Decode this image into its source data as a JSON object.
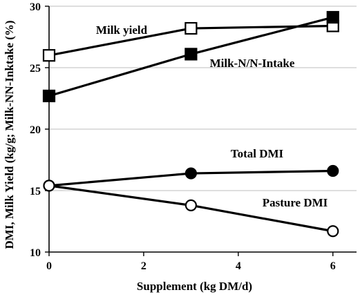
{
  "chart_data": {
    "type": "line",
    "xlabel": "Supplement (kg DM/d)",
    "ylabel": "DMI, Milk Yield (kg/g; Milk-NN-Inktake (%)",
    "xlim": [
      0,
      6.5
    ],
    "ylim": [
      10,
      30
    ],
    "x_ticks": [
      "0",
      "2",
      "4",
      "6"
    ],
    "y_ticks": [
      "10",
      "15",
      "20",
      "25",
      "30"
    ],
    "grid": "horizontal",
    "series": [
      {
        "name": "Milk yield",
        "marker": "open-square",
        "x": [
          0,
          3,
          6
        ],
        "y": [
          26.0,
          28.2,
          28.4
        ]
      },
      {
        "name": "Milk-N/N-Intake",
        "marker": "filled-square",
        "x": [
          0,
          3,
          6
        ],
        "y": [
          22.7,
          26.1,
          29.1
        ]
      },
      {
        "name": "Total DMI",
        "marker": "filled-circle",
        "x": [
          0,
          3,
          6
        ],
        "y": [
          15.4,
          16.4,
          16.6
        ]
      },
      {
        "name": "Pasture DMI",
        "marker": "open-circle",
        "x": [
          0,
          3,
          6
        ],
        "y": [
          15.4,
          13.8,
          11.7
        ]
      }
    ]
  }
}
